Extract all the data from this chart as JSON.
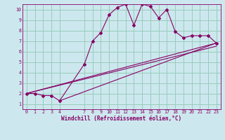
{
  "xlabel": "Windchill (Refroidissement éolien,°C)",
  "bg_color": "#cce8ee",
  "line_color": "#880066",
  "grid_color": "#99ccbb",
  "xlim": [
    -0.5,
    23.5
  ],
  "ylim": [
    0.5,
    10.5
  ],
  "xticks": [
    0,
    1,
    2,
    3,
    4,
    7,
    8,
    9,
    10,
    11,
    12,
    13,
    14,
    15,
    16,
    17,
    18,
    19,
    20,
    21,
    22,
    23
  ],
  "yticks": [
    1,
    2,
    3,
    4,
    5,
    6,
    7,
    8,
    9,
    10
  ],
  "series1_x": [
    0,
    1,
    2,
    3,
    4,
    7,
    8,
    9,
    10,
    11,
    12,
    13,
    14,
    15,
    16,
    17,
    18,
    19,
    20,
    21,
    22,
    23
  ],
  "series1_y": [
    2,
    2,
    1.8,
    1.8,
    1.3,
    4.8,
    7.0,
    7.8,
    9.5,
    10.2,
    10.5,
    8.5,
    10.5,
    10.3,
    9.2,
    10.0,
    7.9,
    7.3,
    7.5,
    7.5,
    7.5,
    6.8
  ],
  "series2_x": [
    0,
    23
  ],
  "series2_y": [
    2.0,
    6.8
  ],
  "series3_x": [
    0,
    23
  ],
  "series3_y": [
    2.0,
    6.5
  ],
  "series4_x": [
    4,
    23
  ],
  "series4_y": [
    1.3,
    6.8
  ],
  "xlabel_fontsize": 5.5,
  "tick_fontsize": 4.8
}
